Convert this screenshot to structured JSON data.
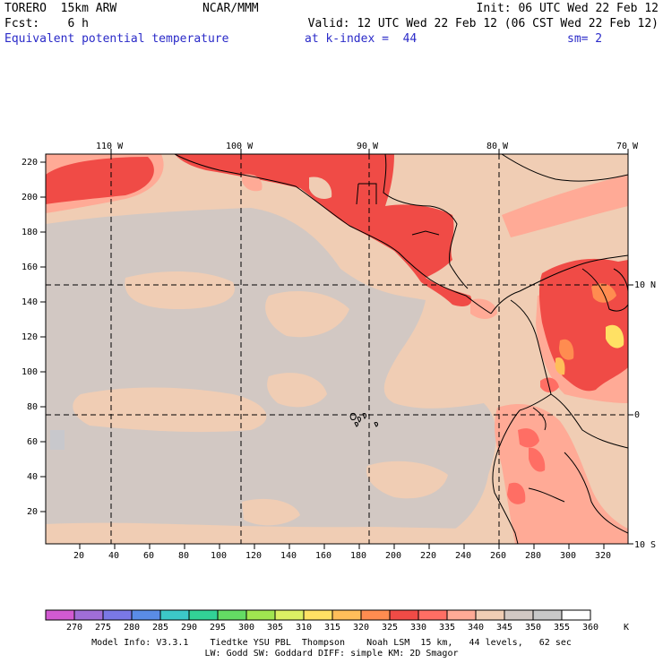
{
  "header": {
    "model": "TORERO  15km ARW",
    "center": "NCAR/MMM",
    "init": "Init: 06 UTC Wed 22 Feb 12",
    "fcst": "Fcst:    6 h",
    "valid": "Valid: 12 UTC Wed 22 Feb 12 (06 CST Wed 22 Feb 12)",
    "field": "Equivalent potential temperature",
    "level": "at k-index =  44",
    "smooth": "sm= 2"
  },
  "map": {
    "top_lon_labels": [
      "110 W",
      "100 W",
      "90 W",
      "80 W",
      "70 W"
    ],
    "right_lat_labels": [
      "10 N",
      "0",
      "10 S"
    ],
    "y_grid_labels": [
      "220",
      "200",
      "180",
      "160",
      "140",
      "120",
      "100",
      "80",
      "60",
      "40",
      "20"
    ],
    "x_grid_labels": [
      "20",
      "40",
      "60",
      "80",
      "100",
      "120",
      "140",
      "160",
      "180",
      "200",
      "220",
      "240",
      "260",
      "280",
      "300",
      "320"
    ]
  },
  "colorbar": {
    "values": [
      "270",
      "275",
      "280",
      "285",
      "290",
      "295",
      "300",
      "305",
      "310",
      "315",
      "320",
      "325",
      "330",
      "335",
      "340",
      "345",
      "350",
      "355",
      "360"
    ],
    "unit": "K",
    "colors": [
      "#d25ad2",
      "#a06ed8",
      "#7a78e6",
      "#5a8ce6",
      "#3cc8c8",
      "#32d296",
      "#64dc64",
      "#a0e650",
      "#dcf064",
      "#ffe164",
      "#ffbe5a",
      "#ff8c50",
      "#f04b46",
      "#ff6e64",
      "#ffaa96",
      "#f0cdb4",
      "#d2c8c3",
      "#c8c8c8",
      "#ffffff"
    ]
  },
  "footer": {
    "line1": "Model Info: V3.3.1    Tiedtke YSU PBL  Thompson    Noah LSM  15 km,   44 levels,   62 sec",
    "line2": "LW: Godd SW: Goddard DIFF: simple KM: 2D Smagor"
  }
}
